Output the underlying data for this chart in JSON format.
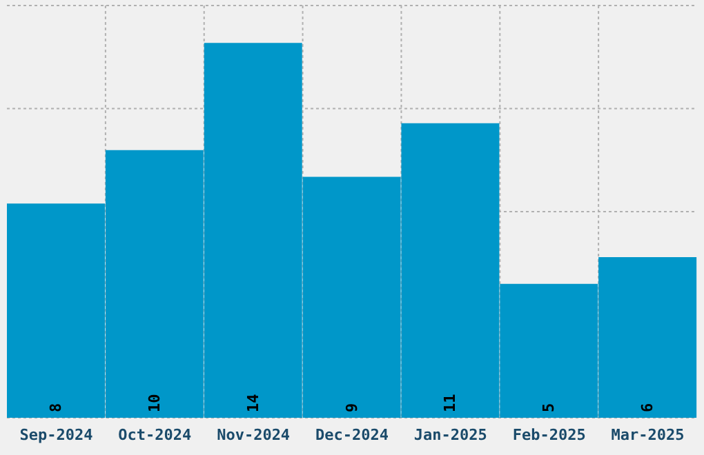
{
  "chart_data": {
    "type": "bar",
    "categories": [
      "Sep-2024",
      "Oct-2024",
      "Nov-2024",
      "Dec-2024",
      "Jan-2025",
      "Feb-2025",
      "Mar-2025"
    ],
    "values": [
      8,
      10,
      14,
      9,
      11,
      5,
      6
    ],
    "color": "#0097c9",
    "ylim": [
      0,
      15.4
    ],
    "yticks": [
      {
        "value": 3.85,
        "label": null
      },
      {
        "value": 7.7,
        "label": null
      },
      {
        "value": 11.55,
        "label": null
      },
      {
        "value": 15.4,
        "label": null
      }
    ],
    "tick_labels": "x",
    "grid": true,
    "data_labels": true
  }
}
